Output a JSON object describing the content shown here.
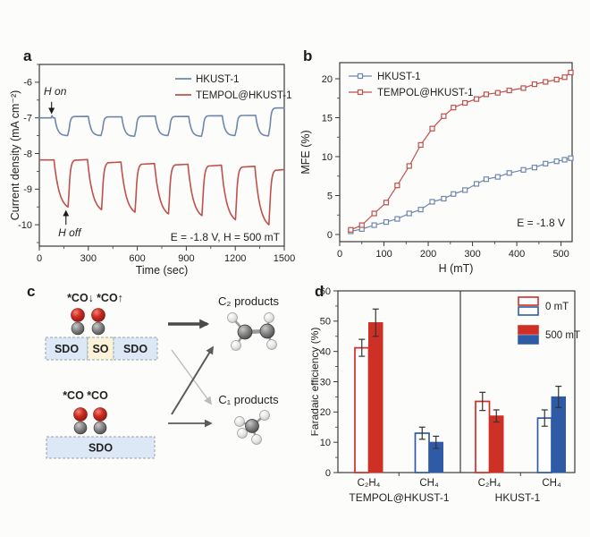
{
  "page": {
    "background": "#fcfcfa"
  },
  "panel_labels": {
    "a": "a",
    "b": "b",
    "c": "c",
    "d": "d"
  },
  "chart_data": [
    {
      "panel": "a",
      "type": "line",
      "xlabel": "Time (sec)",
      "ylabel": "Current density (mA cm⁻²)",
      "xlim": [
        0,
        1500
      ],
      "ylim": [
        -10.6,
        -5.5
      ],
      "xticks": [
        0,
        300,
        600,
        900,
        1200,
        1500
      ],
      "yticks": [
        -6,
        -7,
        -8,
        -9,
        -10
      ],
      "x_minor_step": 150,
      "y_minor_step": 0.5,
      "note": "E = -1.8 V, H = 500 mT",
      "legend_position": "top-right",
      "annotations": [
        {
          "text": "H on",
          "x": 75,
          "text_y": -6.36,
          "line_from": -6.55,
          "line_to": -6.86
        },
        {
          "text": "H off",
          "x": 163,
          "text_y": -10.32,
          "line_from": -10.0,
          "line_to": -9.62
        }
      ],
      "series": [
        {
          "name": "HKUST-1",
          "color": "#6f87ad",
          "square_wave": {
            "t_end": 1500,
            "t_fall_start": 95,
            "t_rise_start": 180,
            "period": 205,
            "cycles": 7,
            "tau_fall": 16,
            "tau_rise": 7,
            "bump": {
              "t": 78,
              "amp": 0.06
            },
            "highs": [
              -7.0,
              -6.96,
              -6.97,
              -6.95,
              -6.96,
              -6.94,
              -6.93,
              -6.72
            ],
            "lows": [
              -7.5,
              -7.5,
              -7.52,
              -7.5,
              -7.52,
              -7.5,
              -7.51
            ]
          }
        },
        {
          "name": "TEMPOL@HKUST-1",
          "color": "#c0504b",
          "square_wave": {
            "t_end": 1500,
            "t_fall_start": 90,
            "t_rise_start": 178,
            "period": 205,
            "cycles": 7,
            "tau_fall": 32,
            "tau_rise": 9,
            "highs": [
              -8.18,
              -8.17,
              -8.24,
              -8.28,
              -8.3,
              -8.33,
              -8.36,
              -8.45
            ],
            "lows": [
              -9.6,
              -9.68,
              -9.75,
              -9.8,
              -9.85,
              -9.97,
              -10.12
            ]
          }
        }
      ]
    },
    {
      "panel": "b",
      "type": "scatter-line",
      "xlabel": "H (mT)",
      "ylabel": "MFE (%)",
      "xlim": [
        0,
        525
      ],
      "ylim": [
        -0.92,
        22.07
      ],
      "xticks": [
        0,
        100,
        200,
        300,
        400,
        500
      ],
      "yticks": [
        0,
        5,
        10,
        15,
        20
      ],
      "x_minor_step": 50,
      "y_minor_step": 2.5,
      "note": "E = -1.8 V",
      "legend_position": "top-left",
      "x": [
        25,
        50,
        78,
        105,
        130,
        157,
        183,
        209,
        235,
        257,
        283,
        309,
        331,
        357,
        383,
        415,
        440,
        465,
        490,
        508,
        522
      ],
      "series": [
        {
          "name": "HKUST-1",
          "color": "#6f87ad",
          "marker": "square-open",
          "y": [
            0.4,
            0.7,
            1.2,
            1.6,
            2.0,
            2.7,
            3.2,
            4.2,
            4.6,
            5.2,
            5.7,
            6.5,
            7.1,
            7.4,
            7.9,
            8.3,
            8.6,
            9.1,
            9.4,
            9.6,
            9.8
          ]
        },
        {
          "name": "TEMPOL@HKUST-1",
          "color": "#c0504b",
          "marker": "square-open",
          "y": [
            0.6,
            1.2,
            2.7,
            4.1,
            6.3,
            8.8,
            11.5,
            13.6,
            15.2,
            16.3,
            16.9,
            17.4,
            18.0,
            18.2,
            18.5,
            18.8,
            19.3,
            19.6,
            19.9,
            20.2,
            20.8
          ]
        }
      ]
    },
    {
      "panel": "d",
      "type": "bar",
      "ylabel": "Faradaic efficiency (%)",
      "ylim": [
        0,
        60
      ],
      "yticks": [
        0,
        10,
        20,
        30,
        40,
        50,
        60
      ],
      "y_minor_step": 5,
      "legend": [
        {
          "label": "0 mT",
          "style": "open"
        },
        {
          "label": "500 mT",
          "style": "filled"
        }
      ],
      "colors": {
        "red": "#cf3026",
        "blue": "#2f5ba6"
      },
      "groups": [
        {
          "name": "TEMPOL@HKUST-1",
          "bars": [
            {
              "x_label": "C₂H₄",
              "color": "red",
              "open": {
                "value": 41.2,
                "err": 2.8
              },
              "filled": {
                "value": 49.5,
                "err": 4.5
              }
            },
            {
              "x_label": "CH₄",
              "color": "blue",
              "open": {
                "value": 13.0,
                "err": 2.0
              },
              "filled": {
                "value": 10.0,
                "err": 2.0
              }
            }
          ]
        },
        {
          "name": "HKUST-1",
          "bars": [
            {
              "x_label": "C₂H₄",
              "color": "red",
              "open": {
                "value": 23.5,
                "err": 3.0
              },
              "filled": {
                "value": 18.7,
                "err": 2.0
              }
            },
            {
              "x_label": "CH₄",
              "color": "blue",
              "open": {
                "value": 18.0,
                "err": 2.7
              },
              "filled": {
                "value": 25.0,
                "err": 3.5
              }
            }
          ]
        }
      ]
    }
  ],
  "diagram_c": {
    "spin_site": {
      "labels": [
        {
          "text": "*CO↓",
          "color": "#2f3db8"
        },
        {
          "text": "*CO↑",
          "color": "#c23030"
        }
      ],
      "segments": [
        {
          "text": "SDO",
          "fill": "#dce8f5"
        },
        {
          "text": "SO",
          "fill": "#faf3d8"
        },
        {
          "text": "SDO",
          "fill": "#dce8f5"
        }
      ]
    },
    "normal_site": {
      "labels": [
        {
          "text": "*CO",
          "color": "#2a2a2a"
        },
        {
          "text": "*CO",
          "color": "#2a2a2a"
        }
      ],
      "segments": [
        {
          "text": "SDO",
          "fill": "#dce8f5"
        }
      ]
    },
    "products": [
      {
        "text": "C₂ products"
      },
      {
        "text": "C₁ products"
      }
    ]
  }
}
